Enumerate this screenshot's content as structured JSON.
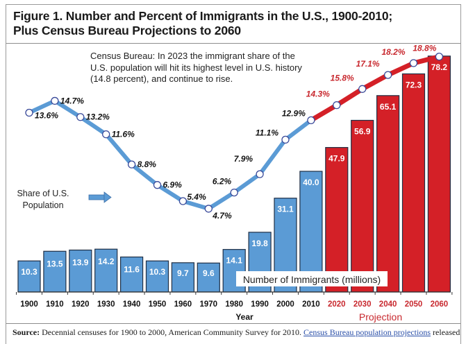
{
  "chart_data": {
    "type": "bar",
    "title": "Figure 1. Number and Percent of Immigrants in the U.S., 1900-2010;",
    "subtitle": "Plus Census Bureau Projections to 2060",
    "xlabel": "Year",
    "projection_label": "Projection",
    "categories": [
      "1900",
      "1910",
      "1920",
      "1930",
      "1940",
      "1950",
      "1960",
      "1970",
      "1980",
      "1990",
      "2000",
      "2010",
      "2020",
      "2030",
      "2040",
      "2050",
      "2060"
    ],
    "projected_from_index": 12,
    "series": [
      {
        "name": "Number of Immigrants (millions)",
        "type": "bar",
        "values": [
          10.3,
          13.5,
          13.9,
          14.2,
          11.6,
          10.3,
          9.7,
          9.6,
          14.1,
          19.8,
          31.1,
          40.0,
          47.9,
          56.9,
          65.1,
          72.3,
          78.2
        ],
        "labels": [
          "10.3",
          "13.5",
          "13.9",
          "14.2",
          "11.6",
          "10.3",
          "9.7",
          "9.6",
          "14.1",
          "19.8",
          "31.1",
          "40.0",
          "47.9",
          "56.9",
          "65.1",
          "72.3",
          "78.2"
        ]
      },
      {
        "name": "Share of U.S. Population",
        "type": "line",
        "values": [
          13.6,
          14.7,
          13.2,
          11.6,
          8.8,
          6.9,
          5.4,
          4.7,
          6.2,
          7.9,
          11.1,
          12.9,
          14.3,
          15.8,
          17.1,
          18.2,
          18.8
        ],
        "labels": [
          "13.6%",
          "14.7%",
          "13.2%",
          "11.6%",
          "8.8%",
          "6.9%",
          "5.4%",
          "4.7%",
          "6.2%",
          "7.9%",
          "11.1%",
          "12.9%",
          "14.3%",
          "15.8%",
          "17.1%",
          "18.2%",
          "18.8%"
        ],
        "unit": "%"
      }
    ],
    "annotations": [
      "Census Bureau: In 2023 the immigrant share of the",
      "U.S. population will hit its highest level in U.S. history",
      "(14.8 percent), and continue to rise."
    ],
    "share_legend": [
      "Share of U.S.",
      "Population"
    ],
    "bar_legend": "Number of Immigrants (millions)",
    "colors": {
      "historical": "#5b9bd5",
      "projected": "#d42027",
      "historical_line": "#5b9bd5",
      "projected_line": "#d42027",
      "bar_outline": "#1f2f45",
      "projected_text": "#c8282e",
      "historical_text": "#111111"
    },
    "grid": false,
    "legend": "inline"
  },
  "source": {
    "label": "Source:",
    "text": " Decennial censuses for 1900 to 2000, American Community Survey for 2010. ",
    "link": "Census Bureau population projections",
    "tail": " released"
  }
}
